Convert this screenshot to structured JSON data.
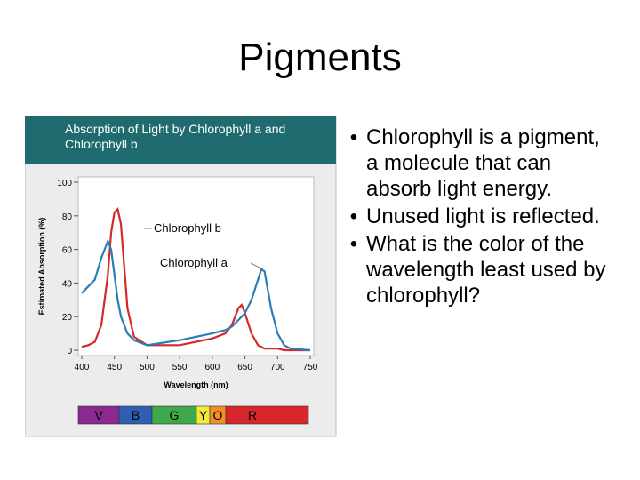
{
  "slide_title": "Pigments",
  "bullets": [
    "Chlorophyll is a pigment, a molecule that can absorb light energy.",
    "Unused light is reflected.",
    "What is the color of the wavelength least used by chlorophyll?"
  ],
  "chart_data": {
    "type": "line",
    "title": "Absorption of Light by Chlorophyll a and Chlorophyll b",
    "x_label": "Wavelength (nm)",
    "y_label": "Estimated Absorption (%)",
    "x": [
      400,
      410,
      420,
      430,
      440,
      445,
      450,
      455,
      460,
      465,
      470,
      480,
      500,
      550,
      600,
      620,
      630,
      640,
      645,
      650,
      660,
      670,
      675,
      680,
      690,
      700,
      710,
      720,
      750
    ],
    "series": [
      {
        "name": "Chlorophyll b",
        "color": "#d62828",
        "values": [
          2,
          3,
          5,
          15,
          45,
          70,
          82,
          84,
          75,
          50,
          25,
          8,
          3,
          3,
          7,
          10,
          15,
          25,
          27,
          22,
          10,
          3,
          2,
          1,
          1,
          1,
          0,
          0,
          0
        ]
      },
      {
        "name": "Chlorophyll a",
        "color": "#2a7db5",
        "values": [
          34,
          38,
          42,
          55,
          65,
          60,
          45,
          30,
          20,
          15,
          10,
          6,
          3,
          6,
          10,
          12,
          14,
          18,
          20,
          22,
          30,
          42,
          48,
          47,
          25,
          10,
          3,
          1,
          0
        ]
      }
    ],
    "xlim": [
      400,
      750
    ],
    "xticks": [
      400,
      450,
      500,
      550,
      600,
      650,
      700,
      750
    ],
    "ylim": [
      0,
      100
    ],
    "yticks": [
      0,
      20,
      40,
      60,
      80,
      100
    ],
    "spectrum": [
      {
        "label": "V",
        "color": "#8b2a8e"
      },
      {
        "label": "B",
        "color": "#2f5fb3"
      },
      {
        "label": "G",
        "color": "#3fa84a"
      },
      {
        "label": "Y",
        "color": "#f2e93a"
      },
      {
        "label": "O",
        "color": "#f0902a"
      },
      {
        "label": "R",
        "color": "#d8272a"
      }
    ]
  }
}
